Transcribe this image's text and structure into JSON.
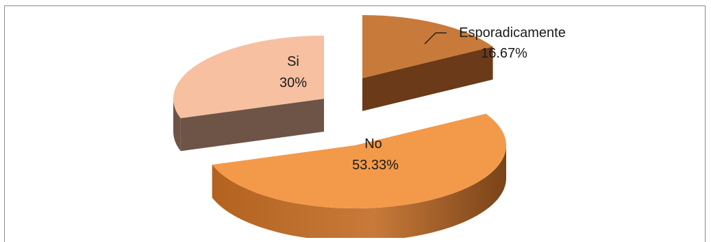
{
  "chart_data": {
    "type": "pie",
    "title": "",
    "categories": [
      "Esporadicamente",
      "No",
      "Si"
    ],
    "values": [
      16.67,
      53.33,
      30
    ],
    "data_labels": [
      {
        "category": "Esporadicamente",
        "value": "16.67%"
      },
      {
        "category": "No",
        "value": "53.33%"
      },
      {
        "category": "Si",
        "value": "30%"
      }
    ],
    "style": "3d-exploded",
    "legend": "none",
    "colors": {
      "Esporadicamente": {
        "top": "#c87a3a",
        "side": "#6b3a18"
      },
      "No": {
        "top": "#f39a4a",
        "side": "#b5662a"
      },
      "Si": {
        "top": "#f6c0a1",
        "side": "#6e5347"
      }
    }
  }
}
